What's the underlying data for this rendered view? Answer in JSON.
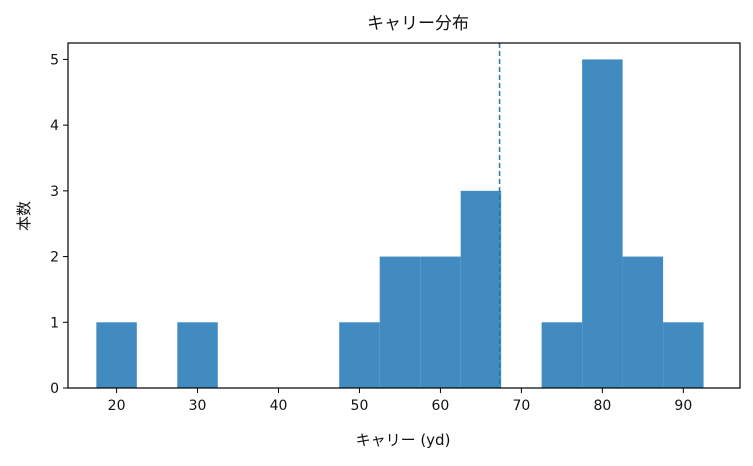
{
  "chart_data": {
    "type": "bar",
    "title": "キャリー分布",
    "xlabel": "キャリー (yd)",
    "ylabel": "本数",
    "xlim": [
      14,
      97
    ],
    "ylim": [
      0,
      5.25
    ],
    "xticks": [
      20,
      30,
      40,
      50,
      60,
      70,
      80,
      90
    ],
    "yticks": [
      0,
      1,
      2,
      3,
      4,
      5
    ],
    "bin_width": 5,
    "bins": [
      {
        "start": 17.5,
        "end": 22.5,
        "count": 1
      },
      {
        "start": 22.5,
        "end": 27.5,
        "count": 0
      },
      {
        "start": 27.5,
        "end": 32.5,
        "count": 1
      },
      {
        "start": 32.5,
        "end": 37.5,
        "count": 0
      },
      {
        "start": 37.5,
        "end": 42.5,
        "count": 0
      },
      {
        "start": 42.5,
        "end": 47.5,
        "count": 0
      },
      {
        "start": 47.5,
        "end": 52.5,
        "count": 1
      },
      {
        "start": 52.5,
        "end": 57.5,
        "count": 2
      },
      {
        "start": 57.5,
        "end": 62.5,
        "count": 2
      },
      {
        "start": 62.5,
        "end": 67.5,
        "count": 3
      },
      {
        "start": 67.5,
        "end": 72.5,
        "count": 0
      },
      {
        "start": 72.5,
        "end": 77.5,
        "count": 1
      },
      {
        "start": 77.5,
        "end": 82.5,
        "count": 5
      },
      {
        "start": 82.5,
        "end": 87.5,
        "count": 2
      },
      {
        "start": 87.5,
        "end": 92.5,
        "count": 1
      }
    ],
    "mean_line": 67.3,
    "colors": {
      "bar": "#428bc0",
      "mean_line": "#2a77a8",
      "axis": "#000000"
    },
    "grid": false,
    "legend": "none"
  }
}
